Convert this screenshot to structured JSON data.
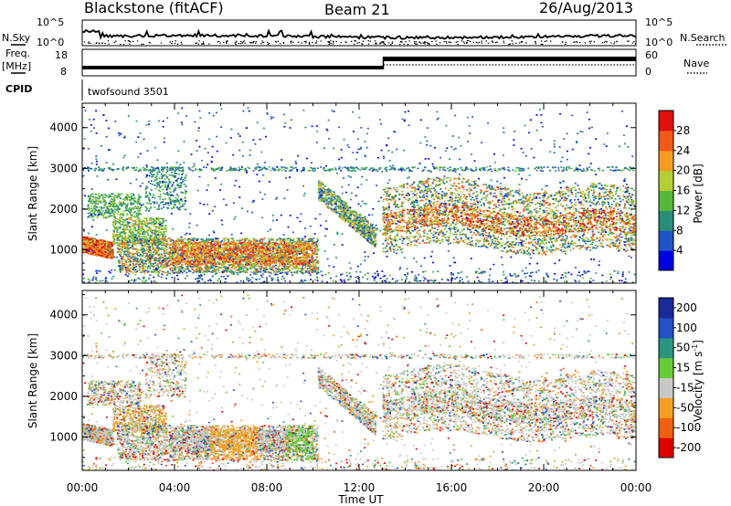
{
  "header": {
    "radar": "Blackstone (fitACF)",
    "beam": "Beam 21",
    "date": "26/Aug/2013"
  },
  "side_labels": {
    "nsky": "N.Sky",
    "nsearch": "N.Search",
    "freq": "Freq.",
    "mhz": "[MHz]",
    "nave": "Nave",
    "cpid": "CPID"
  },
  "noise_ticks": {
    "top": "10^5",
    "bottom": "10^0"
  },
  "freq_ticks": {
    "top": "18",
    "bottom": "8"
  },
  "nave_ticks": {
    "top": "60",
    "bottom": "0"
  },
  "cpid_value": "twofsound 3501",
  "colors": {
    "dark_blue": "#0000e0",
    "blue": "#1f55c8",
    "teal": "#2a8d7a",
    "green": "#55b83a",
    "yellow_green": "#b5cf35",
    "orange": "#f59b1f",
    "orange_red": "#f25a1a",
    "red": "#e01010",
    "vel_navy": "#1a2a9a",
    "vel_blue": "#2450c8",
    "vel_teal": "#2a9580",
    "vel_green": "#66cc33",
    "vel_grey": "#c8c8c8",
    "vel_orange": "#f5a020",
    "vel_darkorange": "#f06010",
    "vel_red": "#e00000"
  },
  "chart_data": [
    {
      "type": "heatmap",
      "name": "Power",
      "xlabel": "Time UT",
      "ylabel": "Slant Range [km]",
      "xlim": [
        0,
        24
      ],
      "ylim": [
        180,
        4600
      ],
      "x_ticks": [
        "00:00",
        "04:00",
        "08:00",
        "12:00",
        "16:00",
        "20:00",
        "00:00"
      ],
      "y_ticks": [
        1000,
        2000,
        3000,
        4000
      ],
      "colorbar": {
        "label": "Power [dB]",
        "ticks": [
          "4",
          "8",
          "12",
          "16",
          "20",
          "24",
          "28"
        ]
      }
    },
    {
      "type": "heatmap",
      "name": "Velocity",
      "xlabel": "Time UT",
      "ylabel": "Slant Range [km]",
      "xlim": [
        0,
        24
      ],
      "ylim": [
        180,
        4600
      ],
      "x_ticks": [
        "00:00",
        "04:00",
        "08:00",
        "12:00",
        "16:00",
        "20:00",
        "00:00"
      ],
      "y_ticks": [
        1000,
        2000,
        3000,
        4000
      ],
      "colorbar": {
        "label": "Velocity [m s",
        "label_sup": "-1",
        "label_close": "]",
        "ticks": [
          "200",
          "100",
          "50",
          "15",
          "-15",
          "-50",
          "-100",
          "-200"
        ]
      }
    }
  ]
}
